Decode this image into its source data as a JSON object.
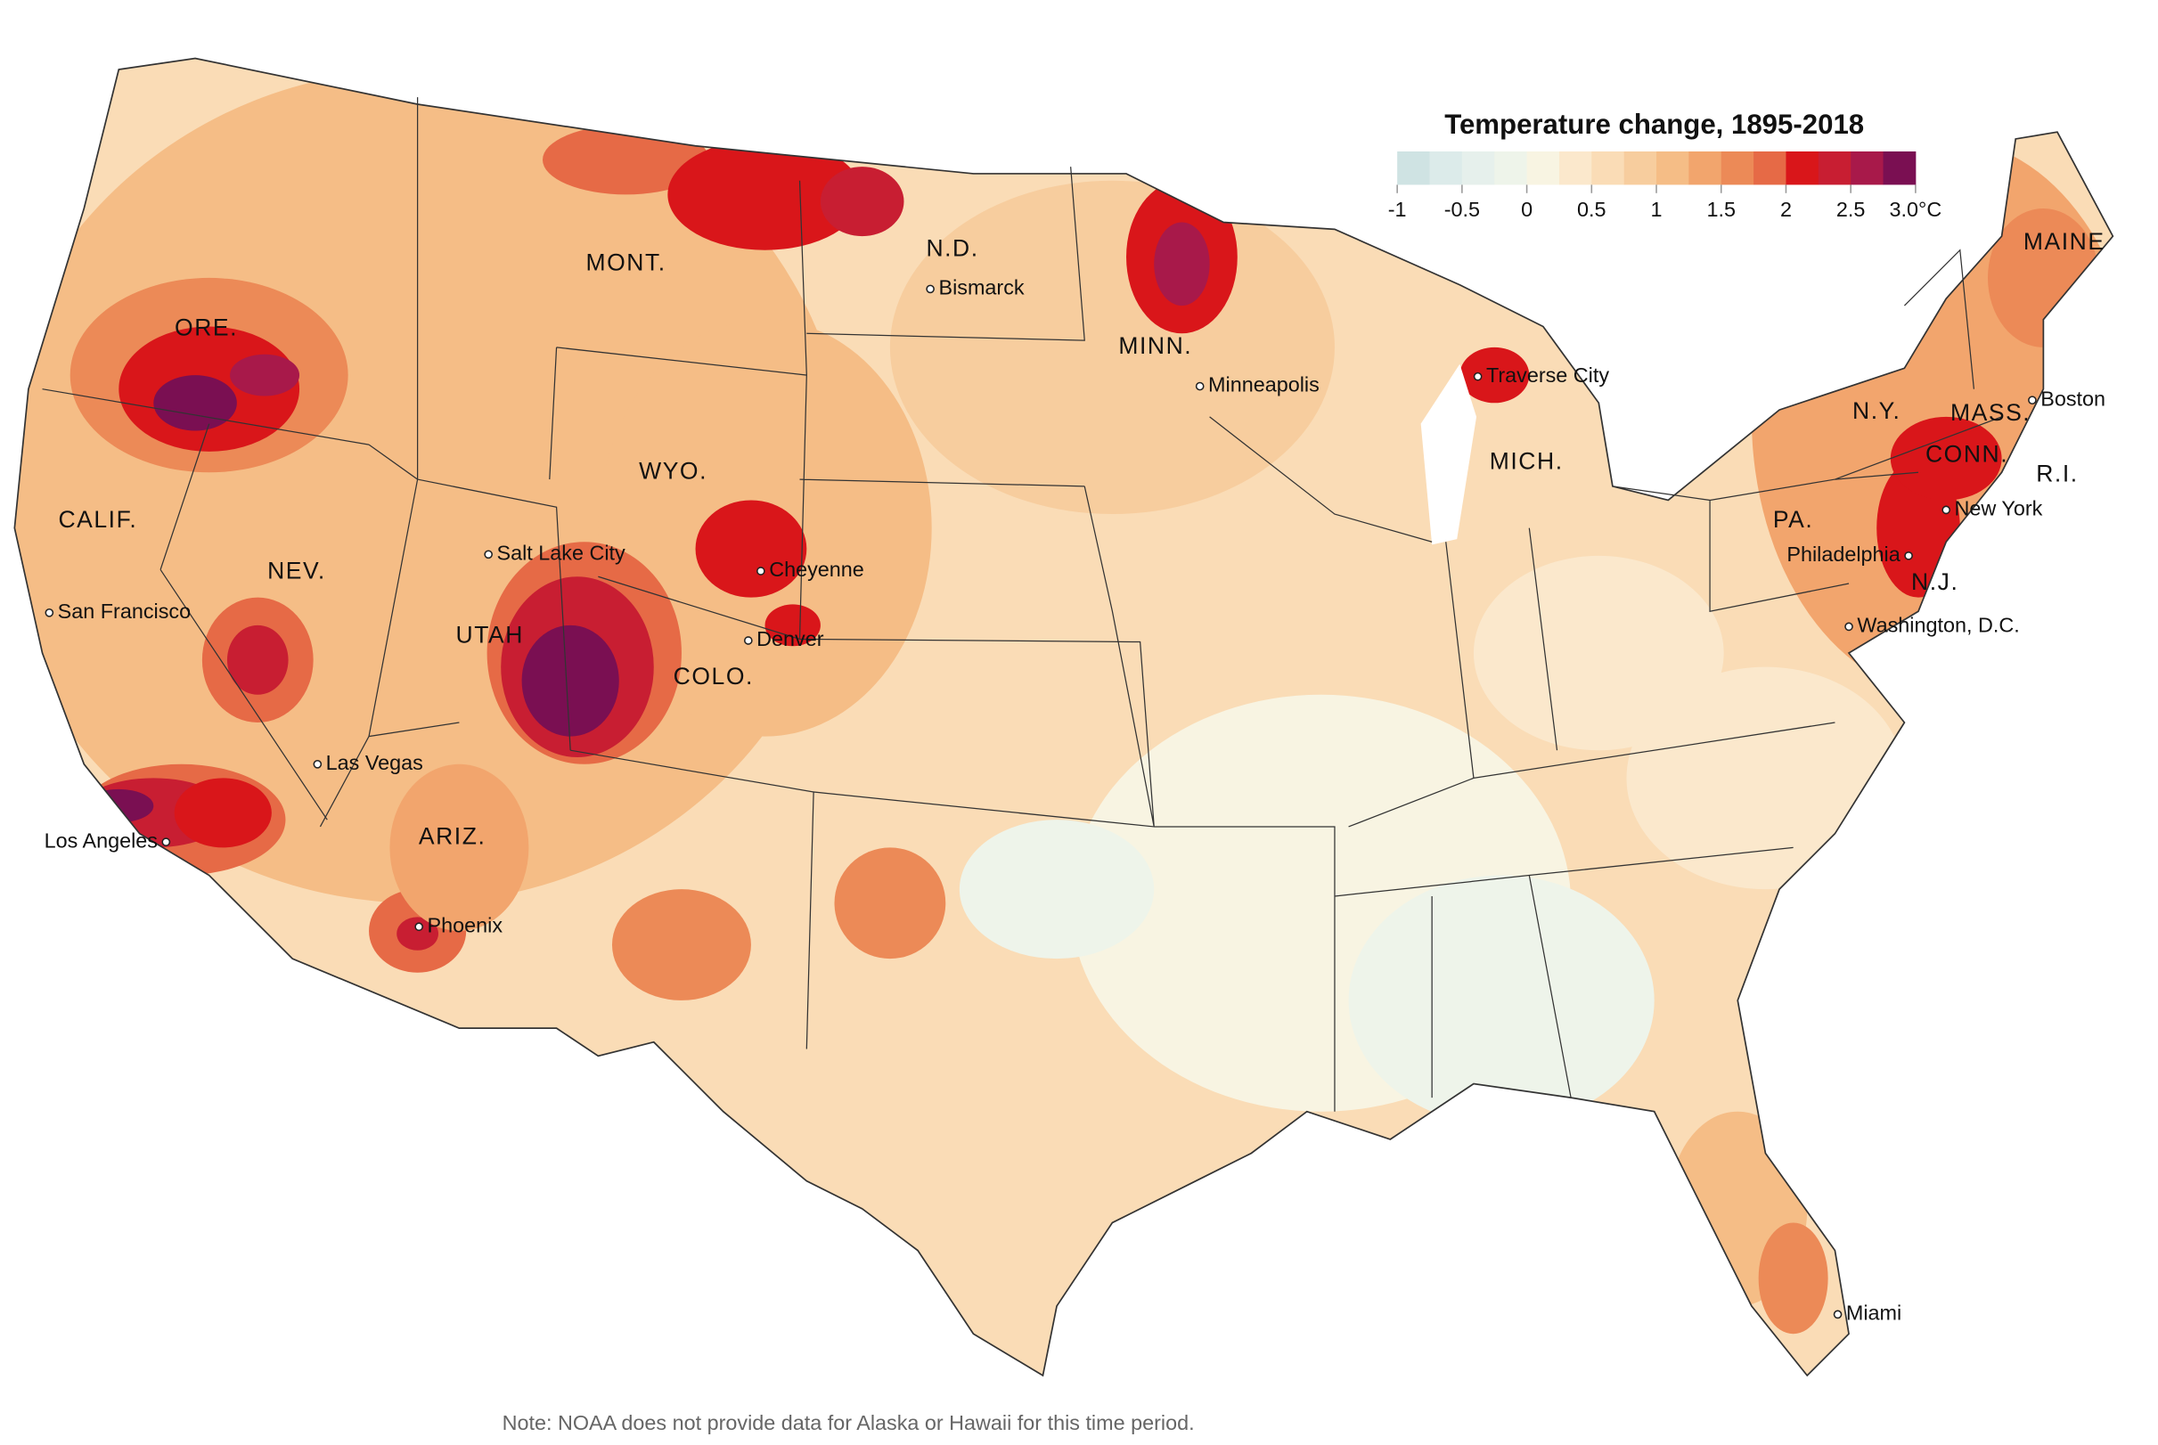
{
  "title": "Temperature change, 1895-2018",
  "legend": {
    "range": [
      -1,
      3
    ],
    "ticks": [
      -1,
      -0.5,
      0,
      0.5,
      1,
      1.5,
      2,
      2.5,
      {
        "value": 3,
        "label": "3.0°C"
      }
    ],
    "colors": [
      "#cfe3e3",
      "#dcebea",
      "#e6f0ec",
      "#eef4ea",
      "#f8f4e2",
      "#fbe8cc",
      "#fadcb6",
      "#f7cd9e",
      "#f5bd86",
      "#f2a56d",
      "#ec8a57",
      "#e66a46",
      "#d9161a",
      "#c81e32",
      "#a8194a",
      "#7a0f52"
    ]
  },
  "states": [
    "ORE.",
    "CALIF.",
    "NEV.",
    "MONT.",
    "WYO.",
    "UTAH",
    "COLO.",
    "ARIZ.",
    "N.D.",
    "MINN.",
    "MICH.",
    "N.Y.",
    "PA.",
    "N.J.",
    "MASS.",
    "CONN.",
    "R.I.",
    "MAINE"
  ],
  "cities": [
    "Bismarck",
    "Minneapolis",
    "Traverse City",
    "Boston",
    "New York",
    "Philadelphia",
    "Washington, D.C.",
    "Salt Lake City",
    "Cheyenne",
    "Denver",
    "San Francisco",
    "Las Vegas",
    "Los Angeles",
    "Phoenix",
    "Miami"
  ],
  "note": "Note: NOAA does not provide data for Alaska or Hawaii for this time period."
}
